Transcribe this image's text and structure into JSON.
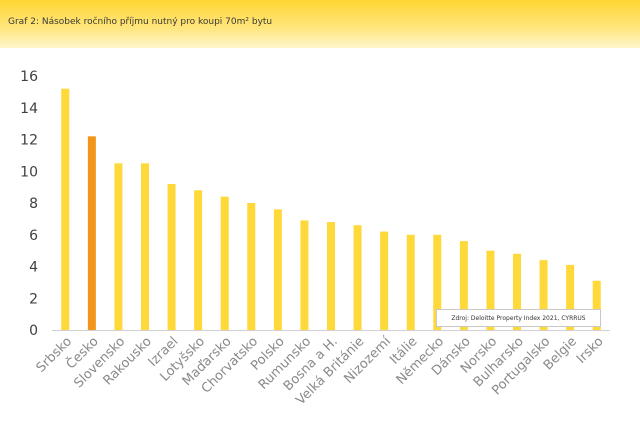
{
  "header": {
    "title": "Graf 2: Násobek ročního příjmu nutný pro koupi 70m² bytu"
  },
  "source": {
    "text": "Zdroj: Deloitte Property Index 2021, CYRRUS"
  },
  "colors": {
    "bar": "#ffd83a",
    "highlight": "#f0961a",
    "axis": "#d0d0d0"
  },
  "chart_data": {
    "type": "bar",
    "title": "Graf 2: Násobek ročního příjmu nutný pro koupi 70m² bytu",
    "xlabel": "",
    "ylabel": "",
    "ylim": [
      0,
      16
    ],
    "yticks": [
      0,
      2,
      4,
      6,
      8,
      10,
      12,
      14,
      16
    ],
    "grid": false,
    "highlight_category": "Česko",
    "categories": [
      "Srbsko",
      "Česko",
      "Slovensko",
      "Rakousko",
      "Izrael",
      "Lotyšsko",
      "Maďarsko",
      "Chorvatsko",
      "Polsko",
      "Rumunsko",
      "Bosna a H.",
      "Velká Británie",
      "Nizozemí",
      "Itálie",
      "Německo",
      "Dánsko",
      "Norsko",
      "Bulharsko",
      "Portugalsko",
      "Belgie",
      "Irsko"
    ],
    "values": [
      15.2,
      12.2,
      10.5,
      10.5,
      9.2,
      8.8,
      8.4,
      8.0,
      7.6,
      6.9,
      6.8,
      6.6,
      6.2,
      6.0,
      6.0,
      5.6,
      5.0,
      4.8,
      4.4,
      4.1,
      3.1
    ]
  }
}
